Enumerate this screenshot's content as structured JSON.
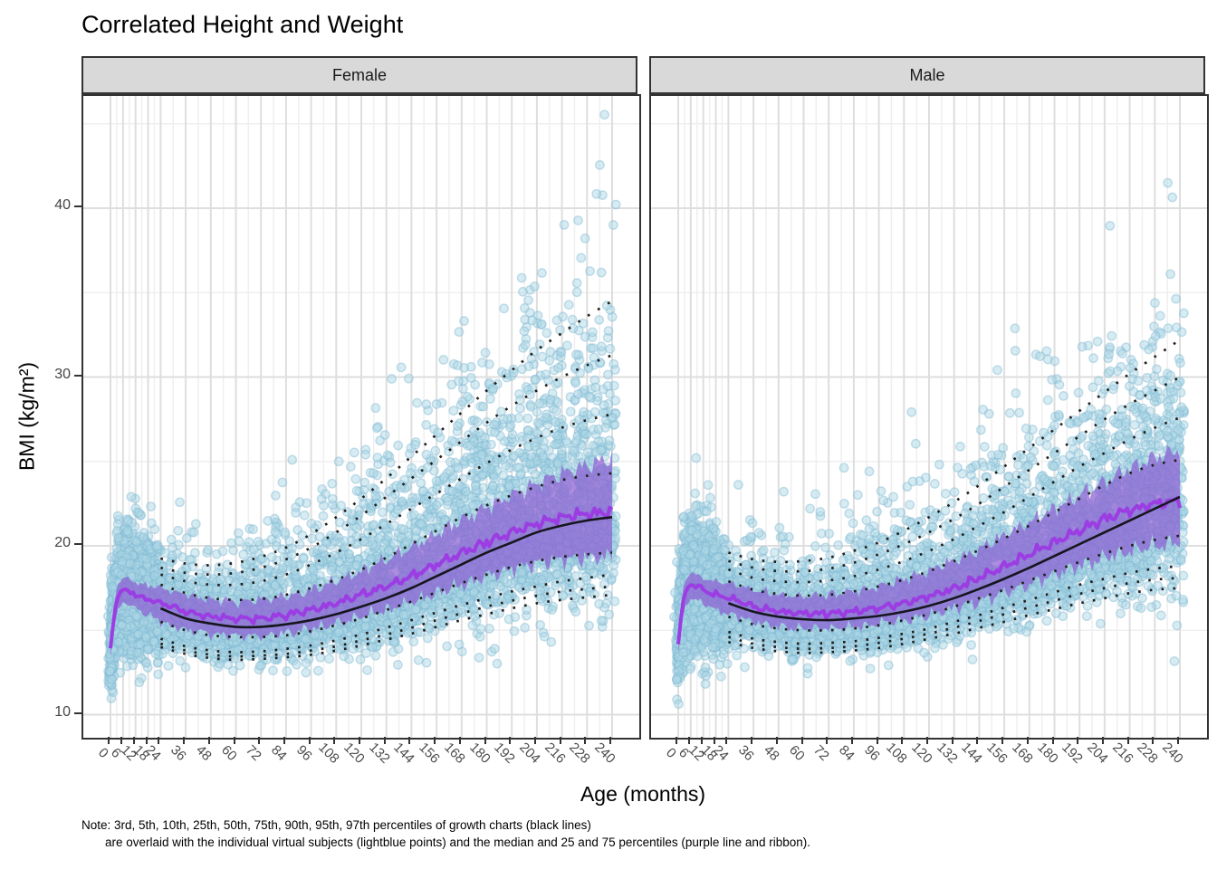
{
  "title": "Correlated Height and Weight",
  "axes": {
    "x_label": "Age (months)",
    "y_label": "BMI (kg/m²)",
    "y_ticks": [
      10,
      20,
      30,
      40
    ],
    "x_ticks": [
      0,
      6,
      12,
      18,
      24,
      36,
      48,
      60,
      72,
      84,
      96,
      108,
      120,
      132,
      144,
      156,
      168,
      180,
      192,
      204,
      216,
      228,
      240
    ]
  },
  "note": {
    "line1": "Note: 3rd, 5th, 10th, 25th, 50th, 75th, 90th, 95th, 97th percentiles of growth charts (black lines)",
    "line2": "are overlaid with the individual virtual subjects (lightblue points) and the median and 25 and 75 percentiles (purple line and ribbon)."
  },
  "colors": {
    "points": "#ADD8E6",
    "point_stroke": "#7EB7D2",
    "ribbon": "#8C5FD2",
    "median_line": "#9B3DE3",
    "growth_line": "#16161E",
    "grid_major": "#DEDEDE",
    "grid_minor": "#EFEFEF",
    "panel_border": "#2B2B2B",
    "strip_bg": "#D9D9D9",
    "tick_text": "#4D4D4D",
    "text": "#000000"
  },
  "chart_data": {
    "type": "scatter",
    "title": "Correlated Height and Weight",
    "xlabel": "Age (months)",
    "ylabel": "BMI (kg/m²)",
    "xlim": [
      -13,
      253
    ],
    "ylim": [
      8.6,
      46.7
    ],
    "x_breaks": [
      0,
      6,
      12,
      18,
      24,
      36,
      48,
      60,
      72,
      84,
      96,
      108,
      120,
      132,
      144,
      156,
      168,
      180,
      192,
      204,
      216,
      228,
      240
    ],
    "y_breaks": [
      10,
      20,
      30,
      40
    ],
    "y_minor_breaks": [
      15,
      25,
      35,
      45
    ],
    "grid": true,
    "legend_position": "none",
    "percentiles_shown": [
      "3rd",
      "5th",
      "10th",
      "25th",
      "50th",
      "75th",
      "90th",
      "95th",
      "97th"
    ],
    "knot_ages": [
      24,
      36,
      48,
      60,
      72,
      84,
      96,
      108,
      120,
      132,
      144,
      156,
      168,
      180,
      192,
      204,
      216,
      228,
      240
    ],
    "facets": [
      {
        "name": "Female",
        "growth_percentiles": {
          "p3": [
            14.0,
            13.6,
            13.35,
            13.25,
            13.3,
            13.4,
            13.55,
            13.8,
            14.1,
            14.45,
            14.8,
            15.2,
            15.6,
            15.95,
            16.3,
            16.6,
            16.8,
            16.95,
            17.1
          ],
          "p5": [
            14.2,
            13.8,
            13.55,
            13.45,
            13.5,
            13.6,
            13.8,
            14.05,
            14.4,
            14.75,
            15.15,
            15.6,
            16.0,
            16.4,
            16.75,
            17.05,
            17.3,
            17.45,
            17.6
          ],
          "p10": [
            14.5,
            14.05,
            13.8,
            13.7,
            13.75,
            13.9,
            14.1,
            14.4,
            14.75,
            15.15,
            15.6,
            16.05,
            16.5,
            16.9,
            17.3,
            17.6,
            17.9,
            18.1,
            18.3
          ],
          "p25": [
            15.5,
            15.0,
            14.7,
            14.6,
            14.6,
            14.7,
            14.95,
            15.3,
            15.7,
            16.2,
            16.7,
            17.25,
            17.8,
            18.3,
            18.75,
            19.1,
            19.35,
            19.5,
            19.6
          ],
          "p50": [
            16.3,
            15.7,
            15.4,
            15.2,
            15.2,
            15.35,
            15.6,
            15.95,
            16.4,
            16.9,
            17.5,
            18.2,
            18.9,
            19.6,
            20.2,
            20.8,
            21.2,
            21.5,
            21.7
          ],
          "p75": [
            17.7,
            17.2,
            16.9,
            16.8,
            16.85,
            17.1,
            17.5,
            18.0,
            18.6,
            19.3,
            20.1,
            20.9,
            21.7,
            22.4,
            23.0,
            23.5,
            23.9,
            24.15,
            24.3
          ],
          "p90": [
            18.3,
            17.9,
            17.7,
            17.7,
            17.9,
            18.3,
            18.9,
            19.6,
            20.4,
            21.3,
            22.2,
            23.1,
            24.0,
            24.9,
            25.7,
            26.4,
            27.0,
            27.45,
            27.8
          ],
          "p95": [
            18.7,
            18.4,
            18.3,
            18.4,
            18.7,
            19.2,
            19.9,
            20.8,
            21.8,
            22.9,
            24.0,
            25.1,
            26.2,
            27.3,
            28.3,
            29.2,
            30.0,
            30.7,
            31.3
          ],
          "p97": [
            19.25,
            18.95,
            18.85,
            19.0,
            19.35,
            19.9,
            20.7,
            21.7,
            22.8,
            24.0,
            25.3,
            26.6,
            27.9,
            29.2,
            30.4,
            31.6,
            32.6,
            33.6,
            34.5
          ]
        },
        "median_curve": [
          [
            0,
            13.9
          ],
          [
            2,
            16.2
          ],
          [
            4,
            17.2
          ],
          [
            6,
            17.4
          ],
          [
            9,
            17.3
          ],
          [
            12,
            17.1
          ],
          [
            18,
            16.8
          ],
          [
            24,
            16.6
          ],
          [
            36,
            16.1
          ],
          [
            48,
            15.8
          ],
          [
            60,
            15.7
          ],
          [
            72,
            15.7
          ],
          [
            84,
            15.9
          ],
          [
            96,
            16.2
          ],
          [
            108,
            16.6
          ],
          [
            120,
            17.1
          ],
          [
            132,
            17.6
          ],
          [
            144,
            18.2
          ],
          [
            156,
            18.9
          ],
          [
            168,
            19.6
          ],
          [
            180,
            20.2
          ],
          [
            192,
            20.8
          ],
          [
            204,
            21.3
          ],
          [
            216,
            21.7
          ],
          [
            228,
            21.9
          ],
          [
            240,
            22.0
          ]
        ],
        "ribbon_p75": [
          [
            0,
            14.5
          ],
          [
            2,
            17.0
          ],
          [
            4,
            17.9
          ],
          [
            6,
            18.1
          ],
          [
            9,
            18.0
          ],
          [
            12,
            17.8
          ],
          [
            18,
            17.6
          ],
          [
            24,
            17.5
          ],
          [
            36,
            17.1
          ],
          [
            48,
            16.8
          ],
          [
            60,
            16.7
          ],
          [
            72,
            16.8
          ],
          [
            84,
            17.0
          ],
          [
            96,
            17.4
          ],
          [
            108,
            17.9
          ],
          [
            120,
            18.5
          ],
          [
            132,
            19.2
          ],
          [
            144,
            19.9
          ],
          [
            156,
            20.7
          ],
          [
            168,
            21.5
          ],
          [
            180,
            22.3
          ],
          [
            192,
            23.0
          ],
          [
            204,
            23.7
          ],
          [
            216,
            24.3
          ],
          [
            228,
            24.8
          ],
          [
            240,
            25.2
          ]
        ],
        "ribbon_p25": [
          [
            0,
            13.4
          ],
          [
            2,
            15.4
          ],
          [
            4,
            16.3
          ],
          [
            6,
            16.6
          ],
          [
            9,
            16.5
          ],
          [
            12,
            16.3
          ],
          [
            18,
            15.9
          ],
          [
            24,
            15.5
          ],
          [
            36,
            15.0
          ],
          [
            48,
            14.8
          ],
          [
            60,
            14.7
          ],
          [
            72,
            14.7
          ],
          [
            84,
            14.8
          ],
          [
            96,
            15.1
          ],
          [
            108,
            15.4
          ],
          [
            120,
            15.8
          ],
          [
            132,
            16.2
          ],
          [
            144,
            16.7
          ],
          [
            156,
            17.2
          ],
          [
            168,
            17.7
          ],
          [
            180,
            18.2
          ],
          [
            192,
            18.6
          ],
          [
            204,
            19.0
          ],
          [
            216,
            19.2
          ],
          [
            228,
            19.3
          ],
          [
            240,
            19.3
          ]
        ],
        "scatter": {
          "n": 6500,
          "seed": 20240,
          "bmi_max": 46.4,
          "bmi_min": 9.2
        }
      },
      {
        "name": "Male",
        "growth_percentiles": {
          "p3": [
            14.3,
            13.95,
            13.75,
            13.65,
            13.7,
            13.8,
            13.95,
            14.2,
            14.5,
            14.8,
            15.15,
            15.5,
            15.9,
            16.25,
            16.6,
            16.9,
            17.2,
            17.4,
            17.5
          ],
          "p5": [
            14.6,
            14.2,
            14.0,
            13.9,
            13.95,
            14.05,
            14.25,
            14.5,
            14.8,
            15.15,
            15.55,
            15.95,
            16.35,
            16.75,
            17.15,
            17.5,
            17.8,
            18.0,
            18.1
          ],
          "p10": [
            14.9,
            14.5,
            14.3,
            14.2,
            14.25,
            14.35,
            14.55,
            14.8,
            15.1,
            15.5,
            15.9,
            16.35,
            16.8,
            17.25,
            17.7,
            18.05,
            18.4,
            18.65,
            18.8
          ],
          "p25": [
            15.8,
            15.35,
            15.1,
            15.0,
            15.0,
            15.1,
            15.3,
            15.6,
            15.95,
            16.4,
            16.9,
            17.4,
            17.95,
            18.5,
            19.05,
            19.55,
            20.0,
            20.35,
            20.6
          ],
          "p50": [
            16.6,
            16.1,
            15.8,
            15.65,
            15.6,
            15.7,
            15.85,
            16.1,
            16.45,
            16.9,
            17.45,
            18.05,
            18.7,
            19.4,
            20.1,
            20.8,
            21.5,
            22.2,
            22.9
          ],
          "p75": [
            17.9,
            17.4,
            17.15,
            17.05,
            17.1,
            17.3,
            17.6,
            18.0,
            18.5,
            19.1,
            19.75,
            20.45,
            21.2,
            22.0,
            22.8,
            23.6,
            24.3,
            24.8,
            25.1
          ],
          "p90": [
            18.6,
            18.1,
            17.9,
            17.85,
            17.95,
            18.2,
            18.6,
            19.1,
            19.7,
            20.4,
            21.2,
            22.0,
            22.9,
            23.8,
            24.7,
            25.5,
            26.3,
            27.0,
            27.6
          ],
          "p95": [
            19.1,
            18.7,
            18.5,
            18.5,
            18.65,
            19.0,
            19.5,
            20.1,
            20.8,
            21.6,
            22.5,
            23.5,
            24.5,
            25.5,
            26.5,
            27.5,
            28.4,
            29.2,
            30.0
          ],
          "p97": [
            19.6,
            19.2,
            19.05,
            19.1,
            19.3,
            19.7,
            20.2,
            20.9,
            21.7,
            22.6,
            23.6,
            24.7,
            25.8,
            26.9,
            28.0,
            29.1,
            30.2,
            31.2,
            32.2
          ]
        },
        "median_curve": [
          [
            0,
            14.2
          ],
          [
            2,
            16.5
          ],
          [
            4,
            17.5
          ],
          [
            6,
            17.7
          ],
          [
            9,
            17.6
          ],
          [
            12,
            17.4
          ],
          [
            18,
            17.1
          ],
          [
            24,
            16.9
          ],
          [
            36,
            16.4
          ],
          [
            48,
            16.1
          ],
          [
            60,
            16.0
          ],
          [
            72,
            16.0
          ],
          [
            84,
            16.1
          ],
          [
            96,
            16.3
          ],
          [
            108,
            16.6
          ],
          [
            120,
            17.0
          ],
          [
            132,
            17.5
          ],
          [
            144,
            18.1
          ],
          [
            156,
            18.8
          ],
          [
            168,
            19.5
          ],
          [
            180,
            20.2
          ],
          [
            192,
            20.9
          ],
          [
            204,
            21.6
          ],
          [
            216,
            22.1
          ],
          [
            228,
            22.5
          ],
          [
            240,
            22.7
          ]
        ],
        "ribbon_p75": [
          [
            0,
            14.8
          ],
          [
            2,
            17.3
          ],
          [
            4,
            18.2
          ],
          [
            6,
            18.4
          ],
          [
            9,
            18.3
          ],
          [
            12,
            18.1
          ],
          [
            18,
            17.9
          ],
          [
            24,
            17.8
          ],
          [
            36,
            17.4
          ],
          [
            48,
            17.1
          ],
          [
            60,
            17.0
          ],
          [
            72,
            17.1
          ],
          [
            84,
            17.3
          ],
          [
            96,
            17.6
          ],
          [
            108,
            18.0
          ],
          [
            120,
            18.5
          ],
          [
            132,
            19.1
          ],
          [
            144,
            19.8
          ],
          [
            156,
            20.6
          ],
          [
            168,
            21.4
          ],
          [
            180,
            22.2
          ],
          [
            192,
            23.0
          ],
          [
            204,
            23.8
          ],
          [
            216,
            24.6
          ],
          [
            228,
            25.2
          ],
          [
            240,
            25.7
          ]
        ],
        "ribbon_p25": [
          [
            0,
            13.7
          ],
          [
            2,
            15.7
          ],
          [
            4,
            16.6
          ],
          [
            6,
            16.9
          ],
          [
            9,
            16.8
          ],
          [
            12,
            16.6
          ],
          [
            18,
            16.2
          ],
          [
            24,
            16.0
          ],
          [
            36,
            15.5
          ],
          [
            48,
            15.2
          ],
          [
            60,
            15.1
          ],
          [
            72,
            15.1
          ],
          [
            84,
            15.2
          ],
          [
            96,
            15.4
          ],
          [
            108,
            15.6
          ],
          [
            120,
            15.9
          ],
          [
            132,
            16.3
          ],
          [
            144,
            16.7
          ],
          [
            156,
            17.2
          ],
          [
            168,
            17.7
          ],
          [
            180,
            18.3
          ],
          [
            192,
            18.8
          ],
          [
            204,
            19.3
          ],
          [
            216,
            19.7
          ],
          [
            228,
            20.0
          ],
          [
            240,
            20.2
          ]
        ],
        "scatter": {
          "n": 6500,
          "seed": 77013,
          "bmi_max": 42.5,
          "bmi_min": 9.2
        }
      }
    ]
  }
}
